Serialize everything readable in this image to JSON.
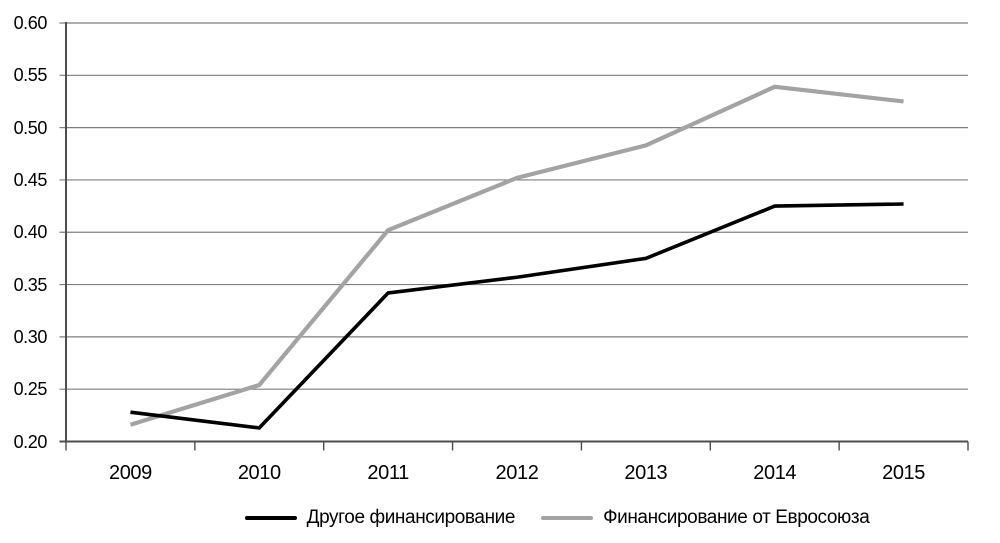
{
  "chart_data": {
    "type": "line",
    "categories": [
      "2009",
      "2010",
      "2011",
      "2012",
      "2013",
      "2014",
      "2015"
    ],
    "series": [
      {
        "name": "Другое финансирование",
        "color": "#000000",
        "line_width": 3.6,
        "values": [
          0.228,
          0.213,
          0.342,
          0.357,
          0.375,
          0.425,
          0.427
        ]
      },
      {
        "name": "Финансирование от Евросоюза",
        "color": "#a3a3a3",
        "line_width": 4.2,
        "values": [
          0.216,
          0.254,
          0.402,
          0.452,
          0.483,
          0.539,
          0.525
        ]
      }
    ],
    "title": "",
    "xlabel": "",
    "ylabel": "",
    "ylim": [
      0.2,
      0.6
    ],
    "ytick_step": 0.05,
    "ytick_labels": [
      "0.20",
      "0.25",
      "0.30",
      "0.35",
      "0.40",
      "0.45",
      "0.50",
      "0.55",
      "0.60"
    ],
    "grid": true,
    "legend_position": "bottom",
    "gridline_color": "#7f7f7f",
    "axis_color": "#4d4d4d",
    "text_color": "#000000",
    "background_color": "#ffffff"
  }
}
